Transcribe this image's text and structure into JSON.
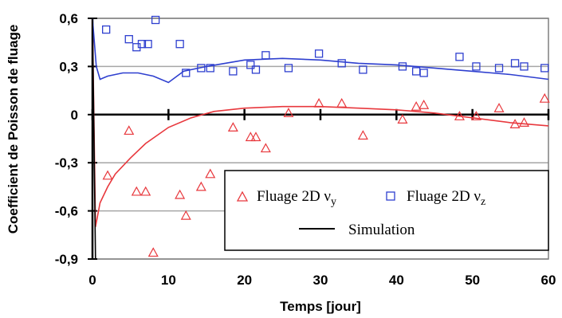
{
  "chart_data": {
    "type": "scatter",
    "xlabel": "Temps [jour]",
    "ylabel": "Coefficient de Poisson de fluage",
    "xlim": [
      0,
      60
    ],
    "ylim": [
      -0.9,
      0.6
    ],
    "x_ticks": [
      0,
      10,
      20,
      30,
      40,
      50,
      60
    ],
    "y_ticks": [
      0.6,
      0.3,
      0,
      -0.3,
      -0.6,
      -0.9
    ],
    "y_tick_labels": [
      "0,6",
      "0,3",
      "0",
      "-0,3",
      "-0,6",
      "-0,9"
    ],
    "grid": "horizontal",
    "legend_position": "bottom-right",
    "series": [
      {
        "name": "Fluage 2D ν",
        "subscript": "y",
        "kind": "markers",
        "marker": "triangle",
        "color": "#e8383d",
        "points": [
          [
            2,
            -0.38
          ],
          [
            4.8,
            -0.1
          ],
          [
            5.8,
            -0.48
          ],
          [
            7,
            -0.48
          ],
          [
            8,
            -0.86
          ],
          [
            11.5,
            -0.5
          ],
          [
            12.3,
            -0.63
          ],
          [
            14.3,
            -0.45
          ],
          [
            15.5,
            -0.37
          ],
          [
            18.5,
            -0.08
          ],
          [
            20.8,
            -0.14
          ],
          [
            21.5,
            -0.14
          ],
          [
            22.8,
            -0.21
          ],
          [
            25.8,
            0.01
          ],
          [
            29.8,
            0.07
          ],
          [
            32.8,
            0.07
          ],
          [
            35.6,
            -0.13
          ],
          [
            40.8,
            -0.03
          ],
          [
            42.6,
            0.05
          ],
          [
            43.6,
            0.06
          ],
          [
            48.3,
            -0.01
          ],
          [
            50.5,
            -0.01
          ],
          [
            53.5,
            0.04
          ],
          [
            55.6,
            -0.06
          ],
          [
            56.8,
            -0.05
          ],
          [
            59.5,
            0.1
          ]
        ]
      },
      {
        "name": "Fluage 2D ν",
        "subscript": "z",
        "kind": "markers",
        "marker": "square",
        "color": "#2e3fcf",
        "points": [
          [
            1.8,
            0.53
          ],
          [
            4.8,
            0.47
          ],
          [
            5.8,
            0.42
          ],
          [
            6.5,
            0.44
          ],
          [
            7.3,
            0.44
          ],
          [
            8.3,
            0.59
          ],
          [
            11.5,
            0.44
          ],
          [
            12.3,
            0.26
          ],
          [
            14.3,
            0.29
          ],
          [
            15.5,
            0.29
          ],
          [
            18.5,
            0.27
          ],
          [
            20.8,
            0.31
          ],
          [
            21.5,
            0.28
          ],
          [
            22.8,
            0.37
          ],
          [
            25.8,
            0.29
          ],
          [
            29.8,
            0.38
          ],
          [
            32.8,
            0.32
          ],
          [
            35.6,
            0.28
          ],
          [
            40.8,
            0.3
          ],
          [
            42.6,
            0.27
          ],
          [
            43.6,
            0.26
          ],
          [
            48.3,
            0.36
          ],
          [
            50.5,
            0.3
          ],
          [
            53.5,
            0.29
          ],
          [
            55.6,
            0.32
          ],
          [
            56.8,
            0.3
          ],
          [
            59.5,
            0.29
          ]
        ]
      },
      {
        "name": "Simulation",
        "kind": "line",
        "color": "#000000",
        "points": []
      },
      {
        "name": "",
        "kind": "line",
        "color": "#e8383d",
        "points": [
          [
            0,
            0.6
          ],
          [
            0.4,
            -0.7
          ],
          [
            1,
            -0.55
          ],
          [
            2,
            -0.45
          ],
          [
            3,
            -0.37
          ],
          [
            5,
            -0.27
          ],
          [
            7,
            -0.18
          ],
          [
            10,
            -0.08
          ],
          [
            13,
            -0.02
          ],
          [
            16,
            0.02
          ],
          [
            20,
            0.04
          ],
          [
            25,
            0.05
          ],
          [
            30,
            0.05
          ],
          [
            35,
            0.04
          ],
          [
            40,
            0.03
          ],
          [
            45,
            0.01
          ],
          [
            50,
            -0.02
          ],
          [
            55,
            -0.05
          ],
          [
            60,
            -0.07
          ]
        ]
      },
      {
        "name": "",
        "kind": "line",
        "color": "#2e3fcf",
        "points": [
          [
            0,
            0.6
          ],
          [
            0.5,
            0.3
          ],
          [
            1,
            0.22
          ],
          [
            2,
            0.24
          ],
          [
            4,
            0.26
          ],
          [
            6,
            0.26
          ],
          [
            8,
            0.24
          ],
          [
            10,
            0.2
          ],
          [
            12,
            0.27
          ],
          [
            15,
            0.3
          ],
          [
            20,
            0.34
          ],
          [
            25,
            0.35
          ],
          [
            30,
            0.34
          ],
          [
            35,
            0.32
          ],
          [
            40,
            0.31
          ],
          [
            45,
            0.29
          ],
          [
            50,
            0.27
          ],
          [
            55,
            0.25
          ],
          [
            60,
            0.22
          ]
        ]
      },
      {
        "name": "",
        "kind": "line",
        "color": "#000000",
        "points": [
          [
            0,
            0.6
          ],
          [
            0.4,
            -0.9
          ]
        ]
      }
    ]
  }
}
